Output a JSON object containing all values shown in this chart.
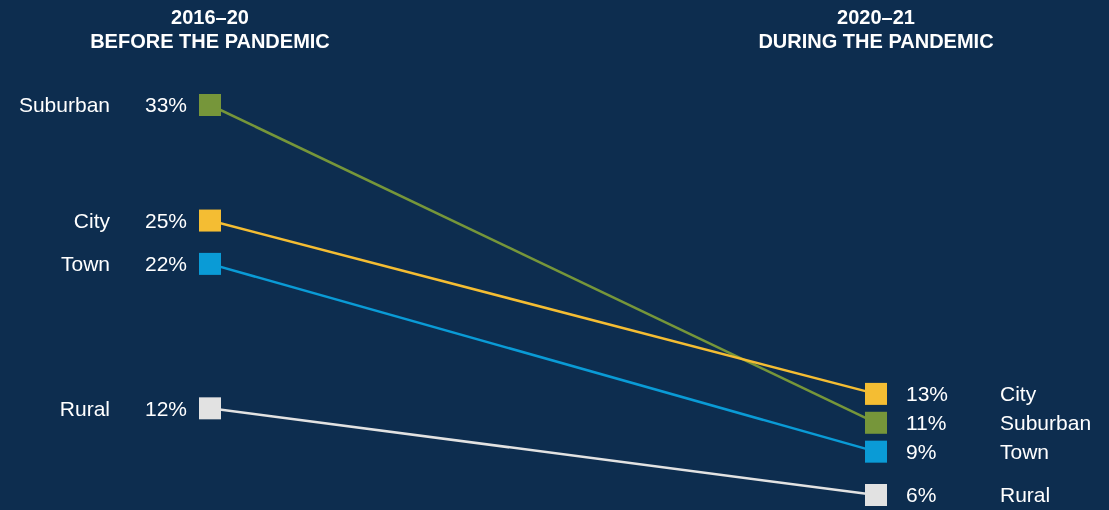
{
  "chart_data": {
    "type": "line",
    "categories": [
      "2016–20\nBEFORE THE PANDEMIC",
      "2020–21\nDURING THE PANDEMIC"
    ],
    "tick_labels": "x",
    "marker": "square",
    "line_style": "solid",
    "series": [
      {
        "name": "Suburban",
        "color": "#76963a",
        "values": [
          33,
          11
        ],
        "value_labels": [
          "33%",
          "11%"
        ]
      },
      {
        "name": "City",
        "color": "#f4bd33",
        "values": [
          25,
          13
        ],
        "value_labels": [
          "25%",
          "13%"
        ]
      },
      {
        "name": "Town",
        "color": "#0a9bd6",
        "values": [
          22,
          9
        ],
        "value_labels": [
          "22%",
          "9%"
        ]
      },
      {
        "name": "Rural",
        "color": "#e2e2e2",
        "values": [
          12,
          6
        ],
        "value_labels": [
          "12%",
          "6%"
        ]
      }
    ]
  }
}
